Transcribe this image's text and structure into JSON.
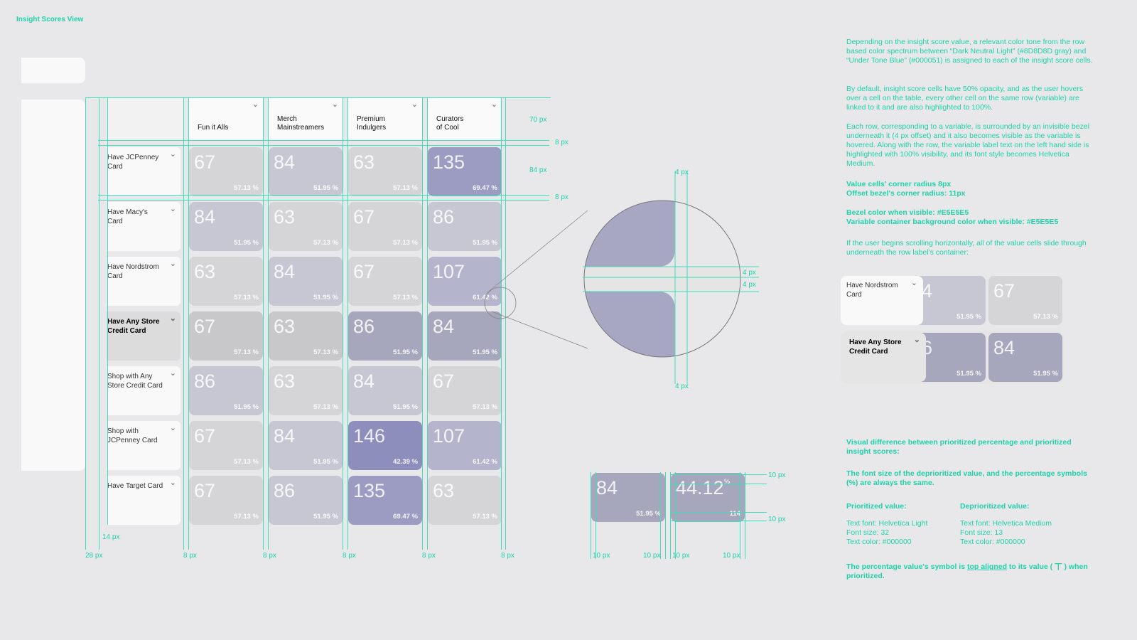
{
  "title": "Insight Scores View",
  "columns": [
    {
      "label": "Fun it Alls"
    },
    {
      "label": "Merch\nMainstreamers"
    },
    {
      "label": "Premium\nIndulgers"
    },
    {
      "label": "Curators\nof Cool"
    }
  ],
  "rows": [
    {
      "label": "Have JCPenney Card",
      "active": false,
      "cells": [
        {
          "v": "67",
          "p": "57.13 %",
          "c": "#D5D5D7"
        },
        {
          "v": "84",
          "p": "51.95 %",
          "c": "#C7C7D4"
        },
        {
          "v": "63",
          "p": "57.13 %",
          "c": "#D5D5D7"
        },
        {
          "v": "135",
          "p": "69.47 %",
          "c": "#9C9CC2"
        }
      ]
    },
    {
      "label": "Have Macy's Card",
      "active": false,
      "cells": [
        {
          "v": "84",
          "p": "51.95 %",
          "c": "#C7C7D4"
        },
        {
          "v": "63",
          "p": "57.13 %",
          "c": "#D5D5D7"
        },
        {
          "v": "67",
          "p": "57.13 %",
          "c": "#D5D5D7"
        },
        {
          "v": "86",
          "p": "51.95 %",
          "c": "#C7C7D4"
        }
      ]
    },
    {
      "label": "Have Nordstrom Card",
      "active": false,
      "cells": [
        {
          "v": "63",
          "p": "57.13 %",
          "c": "#D5D5D7"
        },
        {
          "v": "84",
          "p": "51.95 %",
          "c": "#C7C7D4"
        },
        {
          "v": "67",
          "p": "57.13 %",
          "c": "#D5D5D7"
        },
        {
          "v": "107",
          "p": "61.42 %",
          "c": "#B4B4CC"
        }
      ]
    },
    {
      "label": "Have Any Store Credit Card",
      "active": true,
      "cells": [
        {
          "v": "67",
          "p": "57.13 %",
          "c": "#C8C8CA"
        },
        {
          "v": "63",
          "p": "57.13 %",
          "c": "#C8C8CA"
        },
        {
          "v": "86",
          "p": "51.95 %",
          "c": "#A6A6BC"
        },
        {
          "v": "84",
          "p": "51.95 %",
          "c": "#A6A6BC"
        }
      ]
    },
    {
      "label": "Shop with Any Store Credit Card",
      "active": false,
      "cells": [
        {
          "v": "86",
          "p": "51.95 %",
          "c": "#C7C7D4"
        },
        {
          "v": "63",
          "p": "57.13 %",
          "c": "#D5D5D7"
        },
        {
          "v": "84",
          "p": "51.95 %",
          "c": "#C7C7D4"
        },
        {
          "v": "67",
          "p": "57.13 %",
          "c": "#D5D5D7"
        }
      ]
    },
    {
      "label": "Shop with JCPenney Card",
      "active": false,
      "cells": [
        {
          "v": "67",
          "p": "57.13 %",
          "c": "#D5D5D7"
        },
        {
          "v": "84",
          "p": "51.95 %",
          "c": "#C7C7D4"
        },
        {
          "v": "146",
          "p": "42.39 %",
          "c": "#8E8EBC"
        },
        {
          "v": "107",
          "p": "61.42 %",
          "c": "#B4B4CC"
        }
      ]
    },
    {
      "label": "Have Target Card",
      "active": false,
      "cells": [
        {
          "v": "67",
          "p": "57.13 %",
          "c": "#D5D5D7"
        },
        {
          "v": "86",
          "p": "51.95 %",
          "c": "#C7C7D4"
        },
        {
          "v": "135",
          "p": "69.47 %",
          "c": "#9C9CC2"
        },
        {
          "v": "63",
          "p": "57.13 %",
          "c": "#D5D5D7"
        }
      ]
    }
  ],
  "dims": {
    "header": "70 px",
    "gap": "8 px",
    "row": "84 px",
    "bezel": "4 px",
    "left": "28 px",
    "inner": "14 px",
    "ten": "10 px"
  },
  "zoom_example": {
    "value": "84",
    "percent": "51.95 %",
    "alt_value": "44.12",
    "alt_symbol": "%",
    "alt_sub": "114"
  },
  "description": {
    "p1": "Depending on the insight score value, a relevant color tone from the row based color spectrum between “Dark Neutral Light” (#8D8D8D gray) and “Under Tone Blue” (#000051) is assigned to each of the insight score cells.",
    "p2": "By default, insight score cells have 50% opacity, and as the user hovers over a cell on the table, every other cell on the same row (variable) are linked to it and are also highlighted to 100%.",
    "p3": "Each row, corresponding to a variable, is surrounded by an invisible bezel underneath it (4 px offset) and it also becomes visible as the variable is hovered. Along with the row, the variable label text on the left hand side is highlighted with 100% visibility, and its font style becomes Helvetica Medium.",
    "p4a": "Value cells' corner radius 8px",
    "p4b": "Offset bezel's corner radius: 11px",
    "p5a": "Bezel color when visible: #E5E5E5",
    "p5b": "Variable container background color when visible: #E5E5E5",
    "p6": "If the user begins scrolling horizontally, all of the value cells slide through underneath the row label's container:",
    "p7": "Visual difference between prioritized percentage and prioritized insight scores:",
    "p8": "The font size of the deprioritized value, and the percentage symbols (%) are always the same.",
    "prio_title": "Prioritized value:",
    "prio_1": "Text font: Helvetica Light",
    "prio_2": "Font size: 32",
    "prio_3": "Text color: #000000",
    "deprio_title": "Deprioritized value:",
    "deprio_1": "Text font: Helvetica Medium",
    "deprio_2": "Font size: 13",
    "deprio_3": "Text color: #000000",
    "p9a": "The percentage value's symbol is ",
    "p9link": "top aligned",
    "p9b": " to its value ( 丅 ) when prioritized."
  },
  "scroll_example": [
    {
      "label": "Have Nordstrom Card",
      "partial": "4",
      "partial_p": "51.95 %",
      "cell": "67",
      "cell_p": "57.13 %"
    },
    {
      "label": "Have Any Store Credit Card",
      "partial": "6",
      "partial_p": "51.95 %",
      "cell": "84",
      "cell_p": "51.95 %"
    }
  ]
}
